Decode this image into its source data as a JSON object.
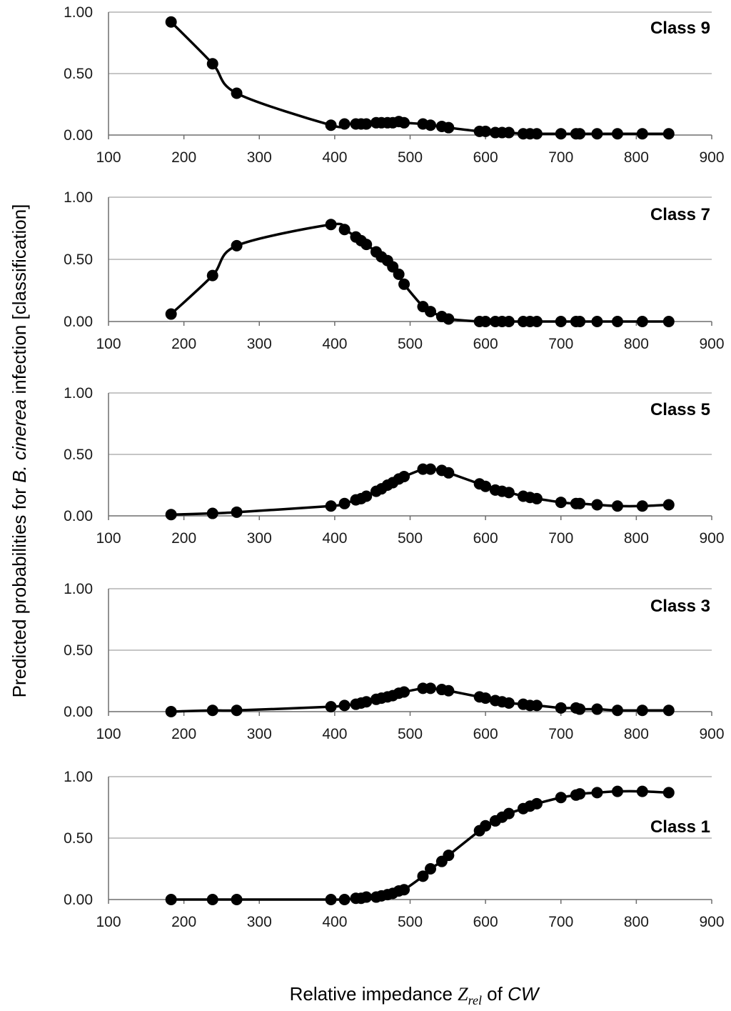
{
  "ylabel": {
    "before": "Predicted probabilities for ",
    "italic": "B. cinerea",
    "after": " infection [classification]"
  },
  "xlabel": {
    "before": "Relative impedance ",
    "z": "Z",
    "sub": "rel",
    "mid": " of ",
    "cw": "CW"
  },
  "chart_data": [
    {
      "type": "line",
      "title": "Class 9",
      "xlim": [
        100,
        900
      ],
      "ylim": [
        0,
        1
      ],
      "xticks": [
        "100",
        "200",
        "300",
        "400",
        "500",
        "600",
        "700",
        "800",
        "900"
      ],
      "yticks": [
        "0.00",
        "0.50",
        "1.00"
      ],
      "x": [
        183,
        238,
        270,
        395,
        413,
        428,
        435,
        442,
        455,
        462,
        470,
        477,
        485,
        492,
        517,
        527,
        542,
        551,
        592,
        600,
        613,
        622,
        631,
        650,
        659,
        668,
        700,
        720,
        725,
        748,
        775,
        808,
        843
      ],
      "y": [
        0.92,
        0.58,
        0.34,
        0.08,
        0.09,
        0.09,
        0.09,
        0.09,
        0.1,
        0.1,
        0.1,
        0.1,
        0.11,
        0.1,
        0.09,
        0.08,
        0.07,
        0.06,
        0.03,
        0.03,
        0.02,
        0.02,
        0.02,
        0.01,
        0.01,
        0.01,
        0.01,
        0.01,
        0.01,
        0.01,
        0.01,
        0.01,
        0.01
      ]
    },
    {
      "type": "line",
      "title": "Class 7",
      "xlim": [
        100,
        900
      ],
      "ylim": [
        0,
        1
      ],
      "xticks": [
        "100",
        "200",
        "300",
        "400",
        "500",
        "600",
        "700",
        "800",
        "900"
      ],
      "yticks": [
        "0.00",
        "0.50",
        "1.00"
      ],
      "x": [
        183,
        238,
        270,
        395,
        413,
        428,
        435,
        442,
        455,
        462,
        470,
        477,
        485,
        492,
        517,
        527,
        542,
        551,
        592,
        600,
        613,
        622,
        631,
        650,
        659,
        668,
        700,
        720,
        725,
        748,
        775,
        808,
        843
      ],
      "y": [
        0.06,
        0.37,
        0.61,
        0.78,
        0.74,
        0.68,
        0.65,
        0.62,
        0.56,
        0.52,
        0.49,
        0.44,
        0.38,
        0.3,
        0.12,
        0.08,
        0.04,
        0.02,
        0,
        0,
        0,
        0,
        0,
        0,
        0,
        0,
        0,
        0,
        0,
        0,
        0,
        0,
        0
      ]
    },
    {
      "type": "line",
      "title": "Class 5",
      "xlim": [
        100,
        900
      ],
      "ylim": [
        0,
        1
      ],
      "xticks": [
        "100",
        "200",
        "300",
        "400",
        "500",
        "600",
        "700",
        "800",
        "900"
      ],
      "yticks": [
        "0.00",
        "0.50",
        "1.00"
      ],
      "x": [
        183,
        238,
        270,
        395,
        413,
        428,
        435,
        442,
        455,
        462,
        470,
        477,
        485,
        492,
        517,
        527,
        542,
        551,
        592,
        600,
        613,
        622,
        631,
        650,
        659,
        668,
        700,
        720,
        725,
        748,
        775,
        808,
        843
      ],
      "y": [
        0.01,
        0.02,
        0.03,
        0.08,
        0.1,
        0.13,
        0.14,
        0.16,
        0.2,
        0.22,
        0.25,
        0.27,
        0.3,
        0.32,
        0.38,
        0.38,
        0.37,
        0.35,
        0.26,
        0.24,
        0.21,
        0.2,
        0.19,
        0.16,
        0.15,
        0.14,
        0.11,
        0.1,
        0.1,
        0.09,
        0.08,
        0.08,
        0.09
      ]
    },
    {
      "type": "line",
      "title": "Class 3",
      "xlim": [
        100,
        900
      ],
      "ylim": [
        0,
        1
      ],
      "xticks": [
        "100",
        "200",
        "300",
        "400",
        "500",
        "600",
        "700",
        "800",
        "900"
      ],
      "yticks": [
        "0.00",
        "0.50",
        "1.00"
      ],
      "x": [
        183,
        238,
        270,
        395,
        413,
        428,
        435,
        442,
        455,
        462,
        470,
        477,
        485,
        492,
        517,
        527,
        542,
        551,
        592,
        600,
        613,
        622,
        631,
        650,
        659,
        668,
        700,
        720,
        725,
        748,
        775,
        808,
        843
      ],
      "y": [
        0,
        0.01,
        0.01,
        0.04,
        0.05,
        0.06,
        0.07,
        0.08,
        0.1,
        0.11,
        0.12,
        0.13,
        0.15,
        0.16,
        0.19,
        0.19,
        0.18,
        0.17,
        0.12,
        0.11,
        0.09,
        0.08,
        0.07,
        0.06,
        0.05,
        0.05,
        0.03,
        0.03,
        0.02,
        0.02,
        0.01,
        0.01,
        0.01
      ]
    },
    {
      "type": "line",
      "title": "Class 1",
      "xlim": [
        100,
        900
      ],
      "ylim": [
        0,
        1
      ],
      "xticks": [
        "100",
        "200",
        "300",
        "400",
        "500",
        "600",
        "700",
        "800",
        "900"
      ],
      "yticks": [
        "0.00",
        "0.50",
        "1.00"
      ],
      "x": [
        183,
        238,
        270,
        395,
        413,
        428,
        435,
        442,
        455,
        462,
        470,
        477,
        485,
        492,
        517,
        527,
        542,
        551,
        592,
        600,
        613,
        622,
        631,
        650,
        659,
        668,
        700,
        720,
        725,
        748,
        775,
        808,
        843
      ],
      "y": [
        0,
        0,
        0,
        0,
        0,
        0.01,
        0.01,
        0.02,
        0.02,
        0.03,
        0.04,
        0.05,
        0.07,
        0.08,
        0.19,
        0.25,
        0.31,
        0.36,
        0.56,
        0.6,
        0.64,
        0.67,
        0.7,
        0.74,
        0.76,
        0.78,
        0.83,
        0.85,
        0.86,
        0.87,
        0.88,
        0.88,
        0.87
      ]
    }
  ]
}
